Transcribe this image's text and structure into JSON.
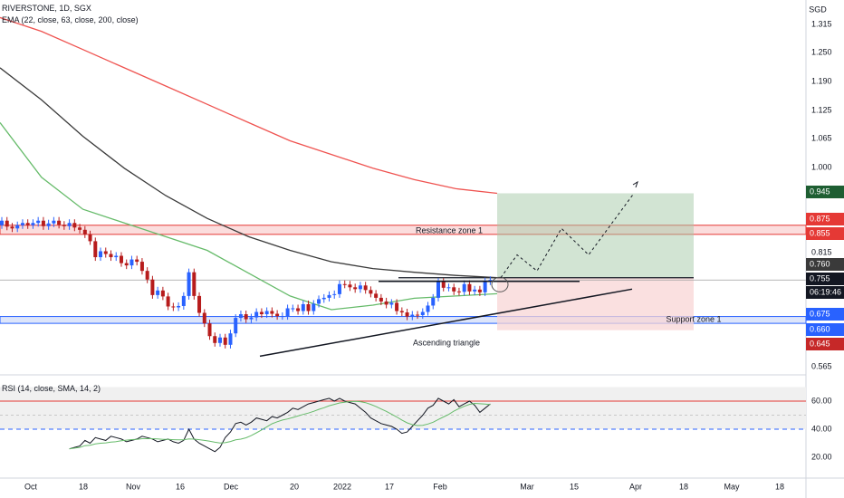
{
  "header": {
    "symbol_line": "RIVERSTONE, 1D, SGX",
    "ema_line": "EMA (22, close, 63, close, 200, close)",
    "rsi_line": "RSI (14, close, SMA, 14, 2)"
  },
  "currency": "SGD",
  "colors": {
    "up": "#2962ff",
    "down": "#b71c1c",
    "ema22": "#66bb6a",
    "ema63": "#3a3a3a",
    "ema200": "#ef5350",
    "resistance_zone": "#f7c1c1",
    "support_zone": "#c6d4f7",
    "target_box": "#a5c9a8",
    "stop_box": "#f8d6d6",
    "rsi_line": "#131722",
    "rsi_sma": "#66bb6a"
  },
  "price_axis": {
    "ticks": [
      "1.315",
      "1.250",
      "1.190",
      "1.125",
      "1.065",
      "1.000",
      "0.815",
      "0.565"
    ],
    "tags": [
      {
        "label": "0.945",
        "bg": "#1e5e32",
        "fg": "#ffffff"
      },
      {
        "label": "0.875",
        "bg": "#e53935",
        "fg": "#ffffff"
      },
      {
        "label": "0.855",
        "bg": "#e53935",
        "fg": "#ffffff"
      },
      {
        "label": "0.760",
        "bg": "#3a3a3a",
        "fg": "#ffffff"
      },
      {
        "label": "0.755",
        "bg": "#131722",
        "fg": "#ffffff"
      },
      {
        "label": "06:19:46",
        "bg": "#131722",
        "fg": "#ffffff"
      },
      {
        "label": "0.675",
        "bg": "#2962ff",
        "fg": "#ffffff"
      },
      {
        "label": "0.660",
        "bg": "#2962ff",
        "fg": "#ffffff"
      },
      {
        "label": "0.645",
        "bg": "#c62828",
        "fg": "#ffffff"
      }
    ]
  },
  "time_axis": [
    "Oct",
    "18",
    "Nov",
    "16",
    "Dec",
    "20",
    "2022",
    "17",
    "Feb",
    "Mar",
    "15",
    "Apr",
    "18",
    "May",
    "18"
  ],
  "annotations": {
    "resistance": "Resistance zone 1",
    "support": "Support zone 1",
    "pattern": "Ascending triangle"
  },
  "rsi_axis": [
    "60.00",
    "40.00",
    "20.00"
  ],
  "chart_data": {
    "type": "candlestick",
    "title": "RIVERSTONE, 1D, SGX",
    "series": [
      {
        "name": "EMA 22"
      },
      {
        "name": "EMA 63"
      },
      {
        "name": "EMA 200"
      }
    ],
    "ema200": [
      1.33,
      1.3,
      1.26,
      1.22,
      1.18,
      1.14,
      1.1,
      1.06,
      1.03,
      1.0,
      0.975,
      0.955,
      0.945
    ],
    "ema63": [
      1.22,
      1.15,
      1.07,
      1.0,
      0.94,
      0.89,
      0.85,
      0.82,
      0.795,
      0.78,
      0.772,
      0.765,
      0.76
    ],
    "ema22": [
      1.1,
      0.98,
      0.91,
      0.88,
      0.85,
      0.82,
      0.77,
      0.72,
      0.69,
      0.7,
      0.715,
      0.72,
      0.725
    ],
    "closes": [
      0.885,
      0.872,
      0.868,
      0.875,
      0.88,
      0.875,
      0.88,
      0.885,
      0.873,
      0.879,
      0.885,
      0.876,
      0.873,
      0.88,
      0.87,
      0.865,
      0.855,
      0.84,
      0.805,
      0.818,
      0.812,
      0.805,
      0.808,
      0.792,
      0.787,
      0.8,
      0.795,
      0.775,
      0.756,
      0.722,
      0.732,
      0.719,
      0.697,
      0.695,
      0.698,
      0.72,
      0.772,
      0.72,
      0.683,
      0.66,
      0.632,
      0.617,
      0.629,
      0.613,
      0.638,
      0.672,
      0.68,
      0.669,
      0.673,
      0.685,
      0.68,
      0.687,
      0.681,
      0.676,
      0.676,
      0.693,
      0.693,
      0.687,
      0.702,
      0.687,
      0.703,
      0.713,
      0.716,
      0.722,
      0.724,
      0.746,
      0.745,
      0.739,
      0.735,
      0.743,
      0.733,
      0.725,
      0.716,
      0.708,
      0.701,
      0.705,
      0.687,
      0.684,
      0.675,
      0.679,
      0.678,
      0.685,
      0.699,
      0.716,
      0.751,
      0.738,
      0.739,
      0.73,
      0.729,
      0.746,
      0.73,
      0.734,
      0.728,
      0.752,
      0.755
    ],
    "target_price": 0.945,
    "entry_price": 0.76,
    "stop_price": 0.645,
    "resistance_zone": [
      0.855,
      0.875
    ],
    "support_zone": [
      0.66,
      0.675
    ],
    "rsi": [
      null,
      null,
      null,
      null,
      null,
      null,
      null,
      null,
      null,
      null,
      null,
      null,
      null,
      26,
      27,
      28,
      32,
      30,
      34,
      33,
      32,
      35,
      34,
      33,
      31,
      32,
      33,
      35,
      34,
      33,
      31,
      32,
      33,
      31,
      30,
      32,
      40,
      33,
      30,
      28,
      26,
      24,
      27,
      34,
      38,
      44,
      45,
      43,
      45,
      48,
      47,
      46,
      49,
      48,
      50,
      52,
      55,
      54,
      56,
      58,
      59,
      60,
      61,
      62,
      60,
      62,
      60,
      59,
      58,
      55,
      52,
      48,
      46,
      44,
      43,
      42,
      40,
      37,
      38,
      42,
      46,
      50,
      55,
      57,
      62,
      60,
      58,
      61,
      56,
      58,
      60,
      57,
      52,
      55,
      58
    ],
    "rsi_ticks": [
      60,
      40,
      20
    ],
    "rsi_bands": [
      70,
      50,
      40
    ]
  }
}
